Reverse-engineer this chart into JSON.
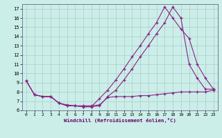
{
  "xlabel": "Windchill (Refroidissement éolien,°C)",
  "background_color": "#cceee8",
  "grid_color": "#aacccc",
  "line_color": "#882288",
  "xlim": [
    -0.5,
    23.5
  ],
  "ylim": [
    6.0,
    17.5
  ],
  "xticks": [
    0,
    1,
    2,
    3,
    4,
    5,
    6,
    7,
    8,
    9,
    10,
    11,
    12,
    13,
    14,
    15,
    16,
    17,
    18,
    19,
    20,
    21,
    22,
    23
  ],
  "yticks": [
    6,
    7,
    8,
    9,
    10,
    11,
    12,
    13,
    14,
    15,
    16,
    17
  ],
  "line1_x": [
    0,
    1,
    2,
    3,
    4,
    5,
    6,
    7,
    8,
    9,
    10,
    11,
    12,
    13,
    14,
    15,
    16,
    17,
    18,
    19,
    20,
    21,
    22,
    23
  ],
  "line1_y": [
    9.2,
    7.7,
    7.5,
    7.5,
    6.8,
    6.5,
    6.5,
    6.4,
    6.4,
    6.5,
    7.5,
    8.2,
    9.3,
    10.5,
    11.8,
    13.0,
    14.3,
    15.5,
    17.2,
    16.0,
    11.0,
    9.5,
    8.3,
    8.3
  ],
  "line2_x": [
    0,
    1,
    2,
    3,
    4,
    5,
    6,
    7,
    8,
    9,
    10,
    11,
    12,
    13,
    14,
    15,
    16,
    17,
    18,
    19,
    20,
    21,
    22,
    23
  ],
  "line2_y": [
    9.2,
    7.7,
    7.5,
    7.5,
    6.8,
    6.5,
    6.5,
    6.4,
    6.4,
    7.3,
    8.2,
    9.3,
    10.5,
    11.8,
    13.0,
    14.3,
    15.5,
    17.2,
    16.0,
    14.8,
    13.8,
    11.0,
    9.5,
    8.3
  ],
  "line3_x": [
    0,
    1,
    2,
    3,
    4,
    5,
    6,
    7,
    8,
    9,
    10,
    11,
    12,
    13,
    14,
    15,
    16,
    17,
    18,
    19,
    20,
    21,
    22,
    23
  ],
  "line3_y": [
    9.2,
    7.7,
    7.5,
    7.5,
    6.8,
    6.6,
    6.5,
    6.5,
    6.5,
    6.6,
    7.4,
    7.5,
    7.5,
    7.5,
    7.6,
    7.6,
    7.7,
    7.8,
    7.9,
    8.0,
    8.0,
    8.0,
    8.0,
    8.2
  ]
}
